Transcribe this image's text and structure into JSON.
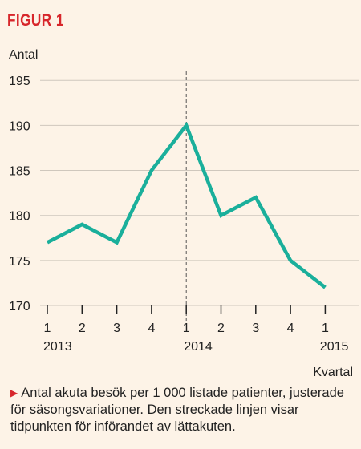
{
  "figure_label": "FIGUR 1",
  "caption_marker": "▶",
  "caption": "Antal akuta besök per 1 000 listade patienter, justerade för säsongsvariationer. Den streckade linjen visar tidpunkten för införandet av lättakuten.",
  "colors": {
    "line": "#1aaf9b",
    "label": "#d7262b",
    "background": "#fdf3e7"
  },
  "chart_data": {
    "type": "line",
    "title": "",
    "ylabel": "Antal",
    "xlabel": "Kvartal",
    "ylim": [
      170,
      196
    ],
    "yticks": [
      170,
      175,
      180,
      185,
      190,
      195
    ],
    "categories": [
      "1",
      "2",
      "3",
      "4",
      "1",
      "2",
      "3",
      "4",
      "1"
    ],
    "year_labels": [
      {
        "index": 0,
        "label": "2013"
      },
      {
        "index": 4,
        "label": "2014"
      },
      {
        "index": 8,
        "label": "2015"
      }
    ],
    "series": [
      {
        "values": [
          177,
          179,
          177,
          185,
          190,
          180,
          182,
          175,
          172
        ]
      }
    ],
    "reference_line": {
      "index": 4,
      "style": "dashed"
    },
    "grid": "horizontal"
  }
}
